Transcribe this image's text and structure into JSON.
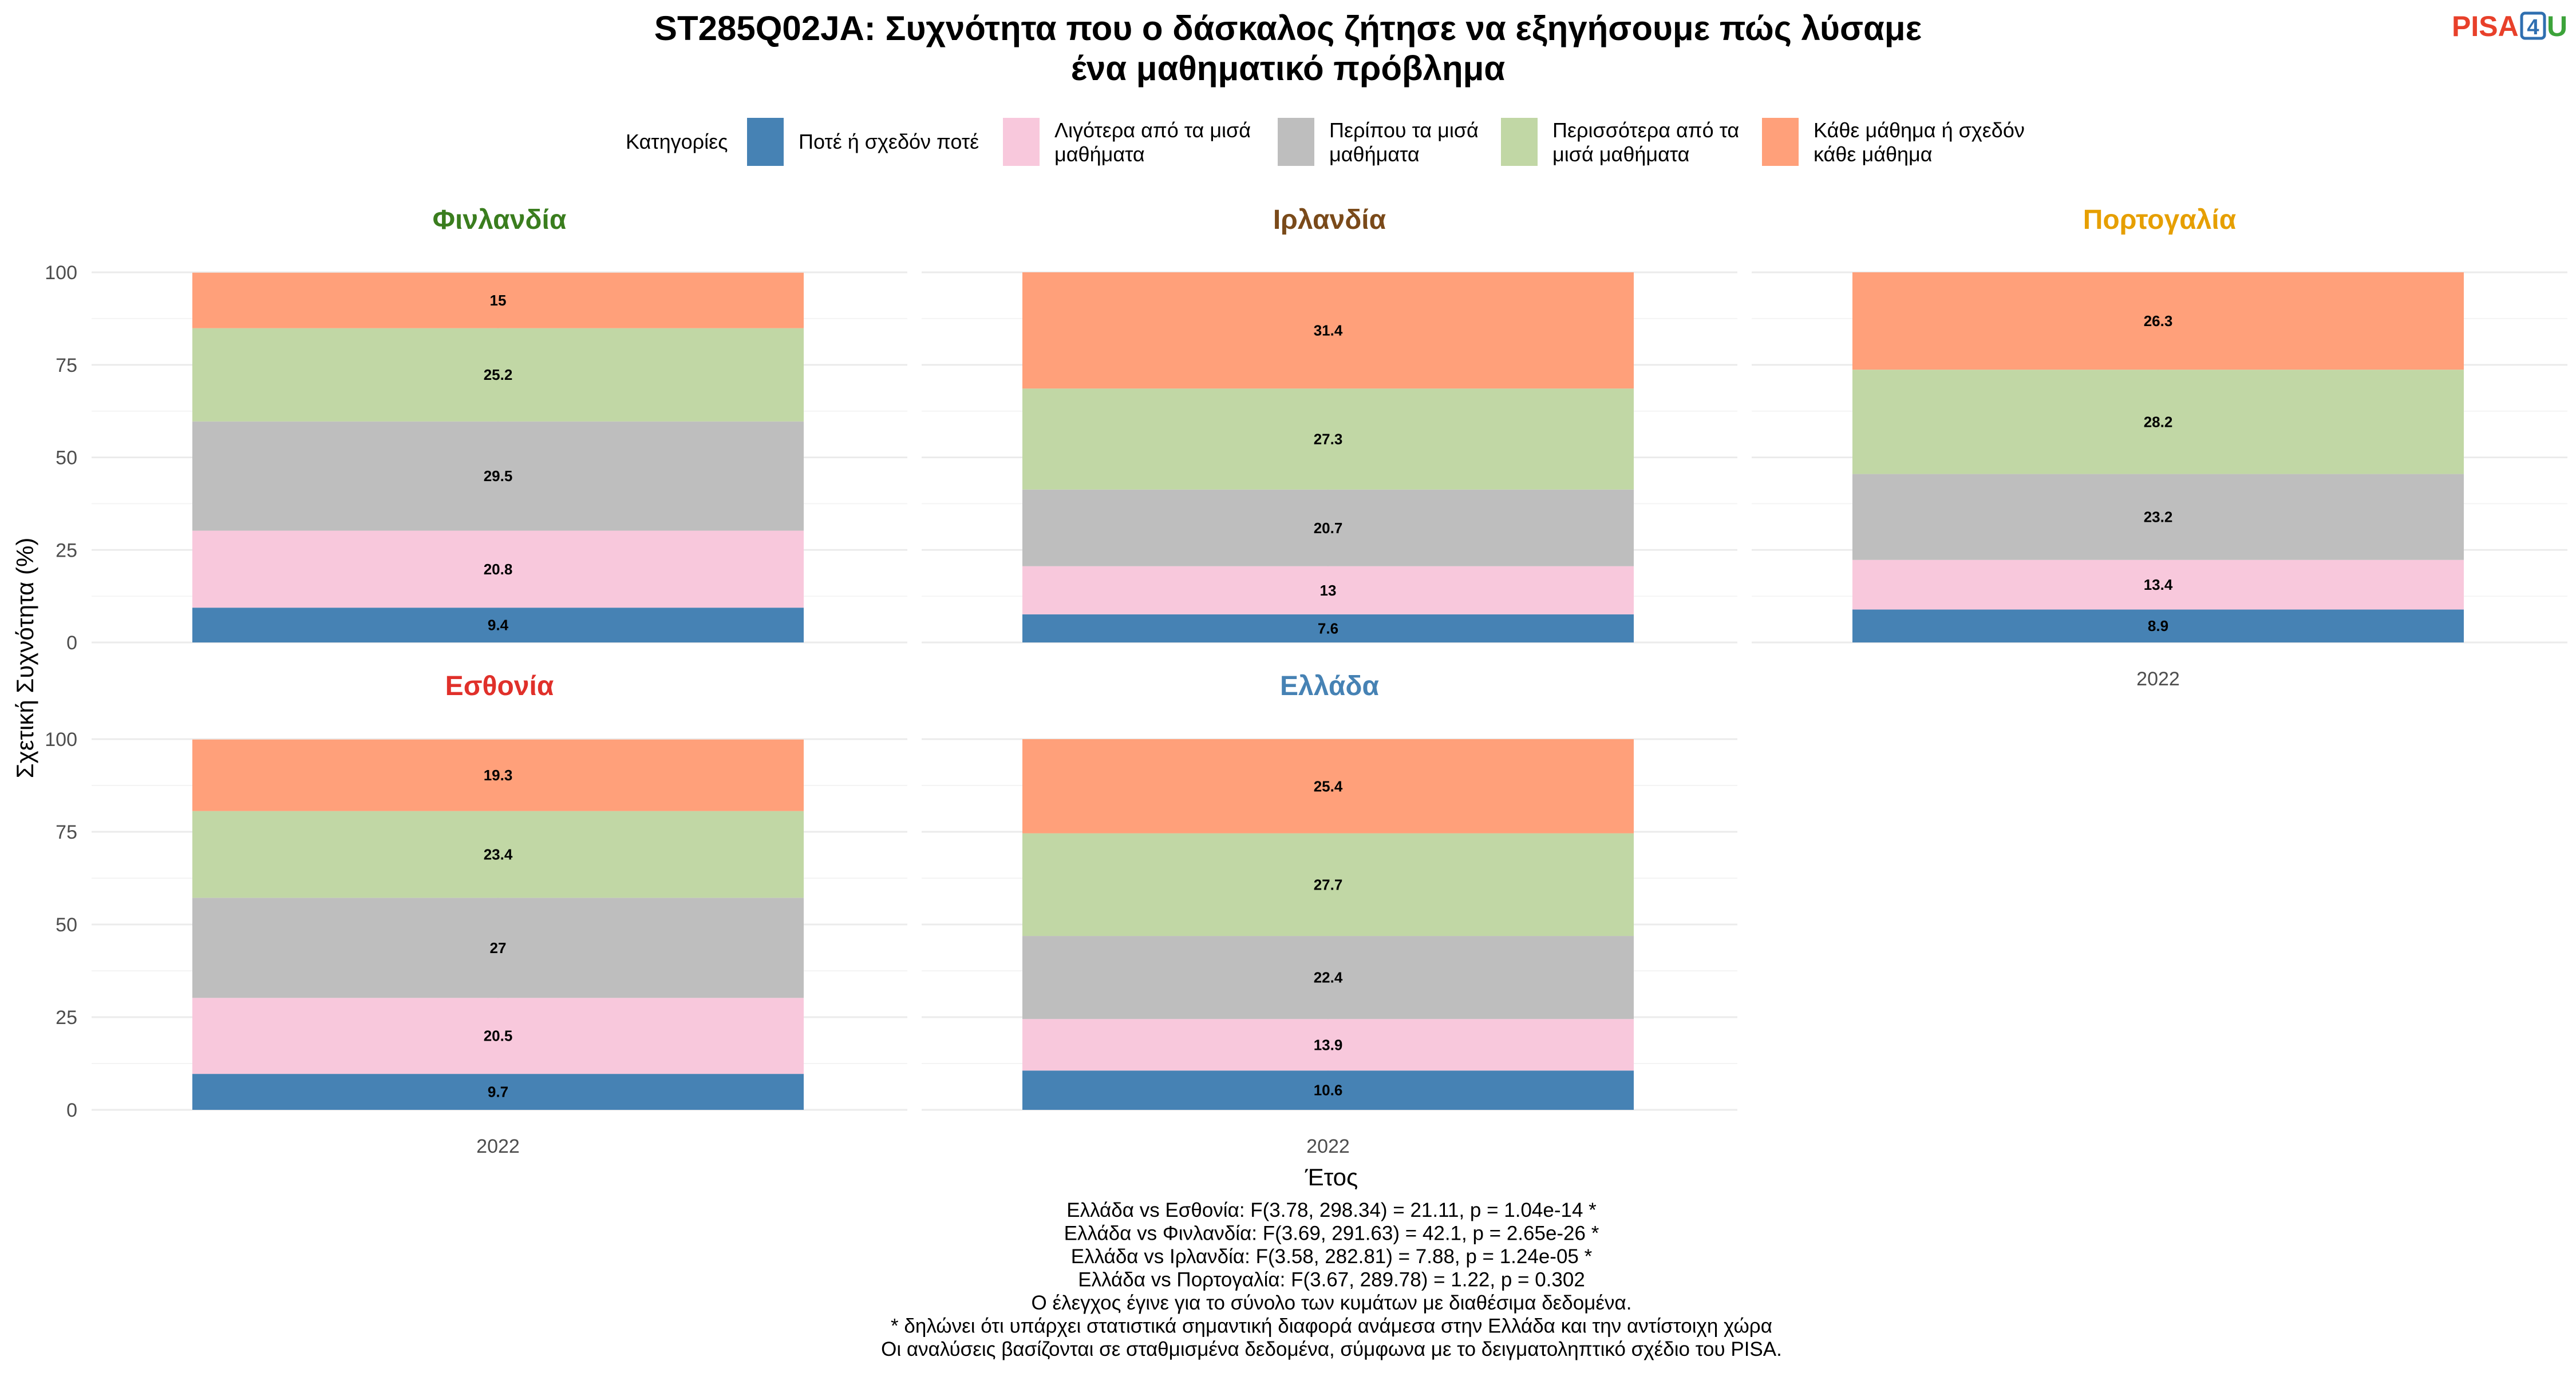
{
  "title_lines": [
    "ST285Q02JA: Συχνότητα που ο δάσκαλος ζήτησε να εξηγήσουμε πώς λύσαμε",
    "ένα μαθηματικό πρόβλημα"
  ],
  "logo": {
    "text_pisa": "PISA",
    "text_4": "4",
    "text_u": "U",
    "color_pisa": "#e8402a",
    "color_4": "#2f6fb0",
    "color_u": "#3ca33a"
  },
  "legend": {
    "title": "Κατηγορίες",
    "items": [
      {
        "lines": [
          "Ποτέ ή σχεδόν ποτέ"
        ],
        "color": "#4682b4"
      },
      {
        "lines": [
          "Λιγότερα από τα μισά",
          "μαθήματα"
        ],
        "color": "#f8c8dc"
      },
      {
        "lines": [
          "Περίπου τα μισά",
          "μαθήματα"
        ],
        "color": "#bebebe"
      },
      {
        "lines": [
          "Περισσότερα από τα",
          "μισά μαθήματα"
        ],
        "color": "#c1d7a5"
      },
      {
        "lines": [
          "Κάθε μάθημα ή σχεδόν",
          "κάθε μάθημα"
        ],
        "color": "#ffa07a"
      }
    ]
  },
  "chart_data": {
    "type": "bar",
    "stacked": true,
    "ylabel": "Σχετική Συχνότητα (%)",
    "xlabel": "Έτος",
    "ylim": [
      0,
      100
    ],
    "yticks": [
      0,
      25,
      50,
      75,
      100
    ],
    "categories": [
      "2022"
    ],
    "panels": [
      {
        "name": "Φινλανδία",
        "color": "#3a7d1e",
        "values": [
          9.4,
          20.8,
          29.5,
          25.2,
          15
        ],
        "labels": [
          "9.4",
          "20.8",
          "29.5",
          "25.2",
          "15"
        ]
      },
      {
        "name": "Ιρλανδία",
        "color": "#7a4a1a",
        "values": [
          7.6,
          13,
          20.7,
          27.3,
          31.4
        ],
        "labels": [
          "7.6",
          "13",
          "20.7",
          "27.3",
          "31.4"
        ]
      },
      {
        "name": "Πορτογαλία",
        "color": "#e69f00",
        "values": [
          8.9,
          13.4,
          23.2,
          28.2,
          26.3
        ],
        "labels": [
          "8.9",
          "13.4",
          "23.2",
          "28.2",
          "26.3"
        ]
      },
      {
        "name": "Εσθονία",
        "color": "#e0302a",
        "values": [
          9.7,
          20.5,
          27,
          23.4,
          19.3
        ],
        "labels": [
          "9.7",
          "20.5",
          "27",
          "23.4",
          "19.3"
        ]
      },
      {
        "name": "Ελλάδα",
        "color": "#4682b4",
        "values": [
          10.6,
          13.9,
          22.4,
          27.7,
          25.4
        ],
        "labels": [
          "10.6",
          "13.9",
          "22.4",
          "27.7",
          "25.4"
        ]
      }
    ]
  },
  "notes": [
    "Ελλάδα vs Εσθονία: F(3.78, 298.34) = 21.11, p = 1.04e-14 *",
    "Ελλάδα vs Φινλανδία: F(3.69, 291.63) = 42.1, p = 2.65e-26 *",
    "Ελλάδα vs Ιρλανδία: F(3.58, 282.81) = 7.88, p = 1.24e-05 *",
    "Ελλάδα vs Πορτογαλία: F(3.67, 289.78) = 1.22, p = 0.302",
    "Ο έλεγχος έγινε για το σύνολο των κυμάτων με διαθέσιμα δεδομένα.",
    "* δηλώνει ότι υπάρχει στατιστικά σημαντική διαφορά ανάμεσα στην Ελλάδα και την αντίστοιχη χώρα",
    "Οι αναλύσεις βασίζονται σε σταθμισμένα δεδομένα, σύμφωνα με το δειγματοληπτικό σχέδιο του PISA."
  ]
}
